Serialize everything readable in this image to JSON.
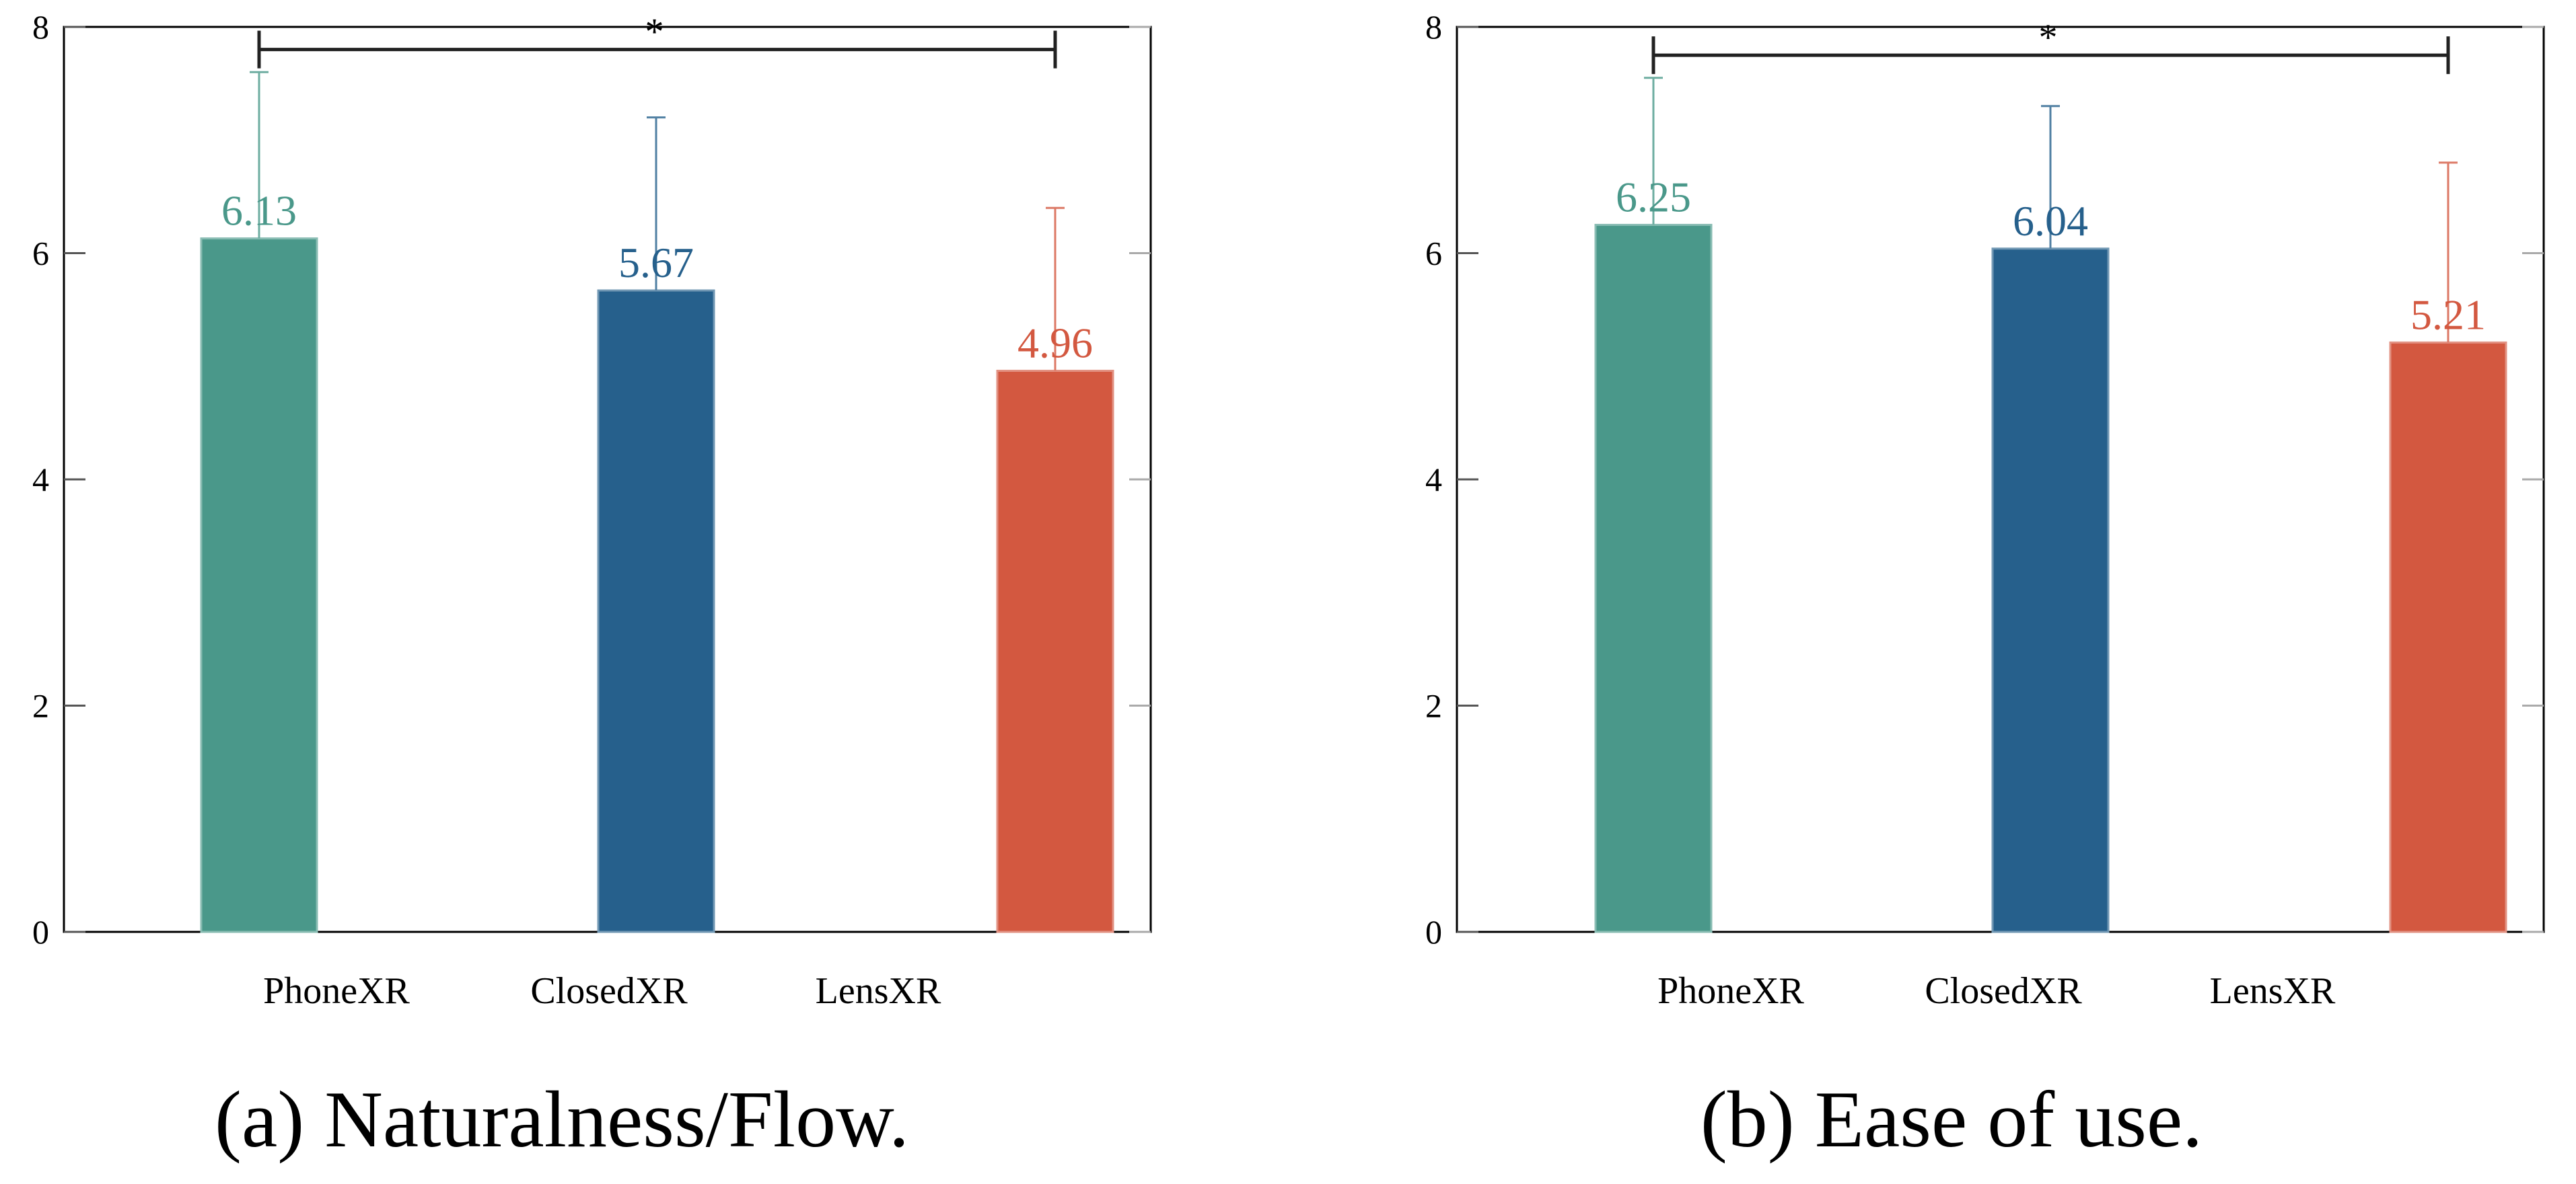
{
  "chart_data": [
    {
      "type": "bar",
      "caption": "(a) Naturalness/Flow.",
      "categories": [
        "PhoneXR",
        "ClosedXR",
        "LensXR"
      ],
      "values": [
        6.13,
        5.67,
        4.96
      ],
      "value_labels": [
        "6.13",
        "5.67",
        "4.96"
      ],
      "error_upper": [
        7.6,
        7.2,
        6.4
      ],
      "ylim": [
        0,
        8
      ],
      "yticks": [
        0,
        2,
        4,
        6,
        8
      ],
      "ytick_labels": [
        "0",
        "2",
        "4",
        "6",
        "8"
      ],
      "xlabel": "",
      "ylabel": "",
      "significance": {
        "from": "PhoneXR",
        "to": "LensXR",
        "level": 7.8,
        "label": "*"
      }
    },
    {
      "type": "bar",
      "caption": "(b) Ease of use.",
      "categories": [
        "PhoneXR",
        "ClosedXR",
        "LensXR"
      ],
      "values": [
        6.25,
        6.04,
        5.21
      ],
      "value_labels": [
        "6.25",
        "6.04",
        "5.21"
      ],
      "error_upper": [
        7.55,
        7.3,
        6.8
      ],
      "ylim": [
        0,
        8
      ],
      "yticks": [
        0,
        2,
        4,
        6,
        8
      ],
      "ytick_labels": [
        "0",
        "2",
        "4",
        "6",
        "8"
      ],
      "xlabel": "",
      "ylabel": "",
      "significance": {
        "from": "PhoneXR",
        "to": "LensXR",
        "level": 7.75,
        "label": "*"
      }
    }
  ],
  "colors": {
    "PhoneXR": "#4a988a",
    "ClosedXR": "#26608c",
    "LensXR": "#d35840"
  }
}
